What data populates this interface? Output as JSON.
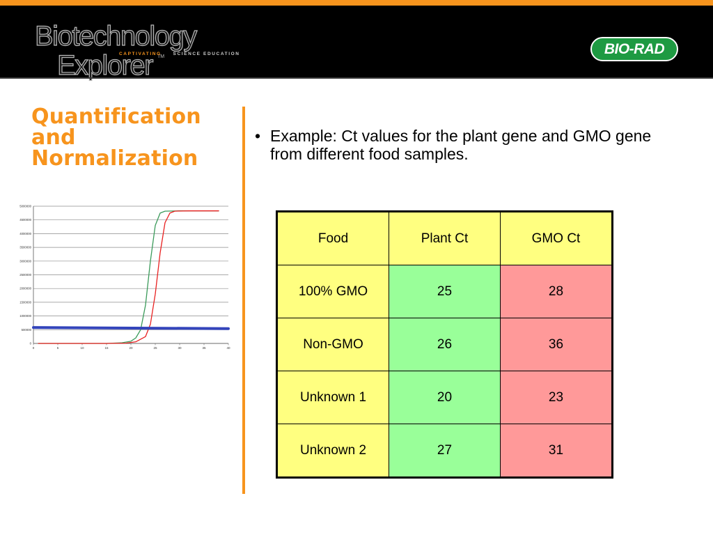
{
  "banner": {
    "logo_line1": "Biotechnology",
    "logo_line2": "Explorer",
    "logo_tm": "TM",
    "logo_tagline_a": "CAPTIVATING",
    "logo_tagline_b": "SCIENCE EDUCATION",
    "brand_logo": "BIO-RAD"
  },
  "slide": {
    "title_lines": [
      "Quantification",
      "and",
      "Normalization"
    ],
    "bullet_mark": "•",
    "bullet": "Example:  Ct values for the plant gene and GMO gene from different food samples."
  },
  "colors": {
    "accent": "#f7941d",
    "head_cell": "#ffff80",
    "plant_cell": "#99ff99",
    "gmo_cell": "#ff9999",
    "curve_green": "#3a9a5a",
    "curve_red": "#e82020",
    "threshold": "#3344bb",
    "brand_green": "#1e9a42"
  },
  "table": {
    "headers": [
      "Food",
      "Plant Ct",
      "GMO Ct"
    ],
    "rows": [
      [
        "100% GMO",
        "25",
        "28"
      ],
      [
        "Non-GMO",
        "26",
        "36"
      ],
      [
        "Unknown 1",
        "20",
        "23"
      ],
      [
        "Unknown 2",
        "27",
        "31"
      ]
    ]
  },
  "chart_data": {
    "type": "line",
    "title": "",
    "xlabel": "",
    "ylabel": "",
    "xlim": [
      0,
      40
    ],
    "ylim": [
      0,
      5000000
    ],
    "x_ticks": [
      "0",
      "5",
      "10",
      "15",
      "20",
      "25",
      "30",
      "35",
      "40"
    ],
    "y_ticks": [
      "0",
      "500000",
      "1000000",
      "1500000",
      "2000000",
      "2500000",
      "3000000",
      "3500000",
      "4000000",
      "4500000",
      "5000000"
    ],
    "grid": true,
    "legend": "none",
    "series": [
      {
        "color": "#3a9a5a",
        "points": [
          [
            1,
            0
          ],
          [
            5,
            0
          ],
          [
            10,
            0
          ],
          [
            15,
            0
          ],
          [
            18,
            20000
          ],
          [
            20,
            80000
          ],
          [
            21,
            200000
          ],
          [
            22,
            500000
          ],
          [
            23,
            1400000
          ],
          [
            24,
            3000000
          ],
          [
            25,
            4300000
          ],
          [
            26,
            4750000
          ],
          [
            27,
            4820000
          ],
          [
            30,
            4830000
          ],
          [
            35,
            4830000
          ],
          [
            38,
            4830000
          ]
        ]
      },
      {
        "color": "#e82020",
        "points": [
          [
            1,
            0
          ],
          [
            5,
            0
          ],
          [
            10,
            0
          ],
          [
            15,
            0
          ],
          [
            19,
            10000
          ],
          [
            21,
            60000
          ],
          [
            23,
            250000
          ],
          [
            24,
            700000
          ],
          [
            25,
            1800000
          ],
          [
            26,
            3300000
          ],
          [
            27,
            4400000
          ],
          [
            28,
            4750000
          ],
          [
            29,
            4820000
          ],
          [
            32,
            4830000
          ],
          [
            35,
            4830000
          ],
          [
            38,
            4830000
          ]
        ]
      },
      {
        "color": "#3344bb",
        "points": [
          [
            0,
            580000
          ],
          [
            40,
            540000
          ]
        ]
      }
    ]
  }
}
